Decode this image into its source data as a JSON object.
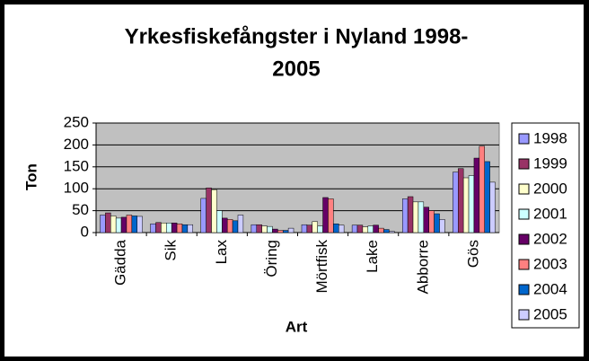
{
  "chart_data": {
    "type": "bar",
    "title": "Yrkesfiskefångster i Nyland 1998-",
    "title_line2": "2005",
    "x_label": "Art",
    "y_label": "Ton",
    "categories": [
      "Gädda",
      "Sik",
      "Lax",
      "Öring",
      "Mörtfisk",
      "Lake",
      "Abborre",
      "Gös"
    ],
    "series": [
      {
        "name": "1998",
        "color": "#9999ff",
        "values": [
          40,
          20,
          78,
          18,
          18,
          17,
          77,
          138
        ]
      },
      {
        "name": "1999",
        "color": "#993366",
        "values": [
          45,
          23,
          102,
          18,
          17,
          17,
          82,
          146
        ]
      },
      {
        "name": "2000",
        "color": "#ffffcc",
        "values": [
          38,
          22,
          98,
          15,
          25,
          13,
          70,
          125
        ]
      },
      {
        "name": "2001",
        "color": "#ccffff",
        "values": [
          33,
          22,
          50,
          14,
          15,
          15,
          70,
          130
        ]
      },
      {
        "name": "2002",
        "color": "#660066",
        "values": [
          35,
          22,
          33,
          8,
          80,
          17,
          58,
          170
        ]
      },
      {
        "name": "2003",
        "color": "#ff8080",
        "values": [
          40,
          20,
          30,
          5,
          77,
          10,
          50,
          197
        ]
      },
      {
        "name": "2004",
        "color": "#0066cc",
        "values": [
          38,
          18,
          27,
          5,
          20,
          7,
          43,
          162
        ]
      },
      {
        "name": "2005",
        "color": "#ccccff",
        "values": [
          37,
          18,
          40,
          10,
          17,
          3,
          30,
          115
        ]
      }
    ],
    "ylim": [
      0,
      250
    ],
    "yticks": [
      0,
      50,
      100,
      150,
      200,
      250
    ],
    "grid": true,
    "legend": "right"
  }
}
